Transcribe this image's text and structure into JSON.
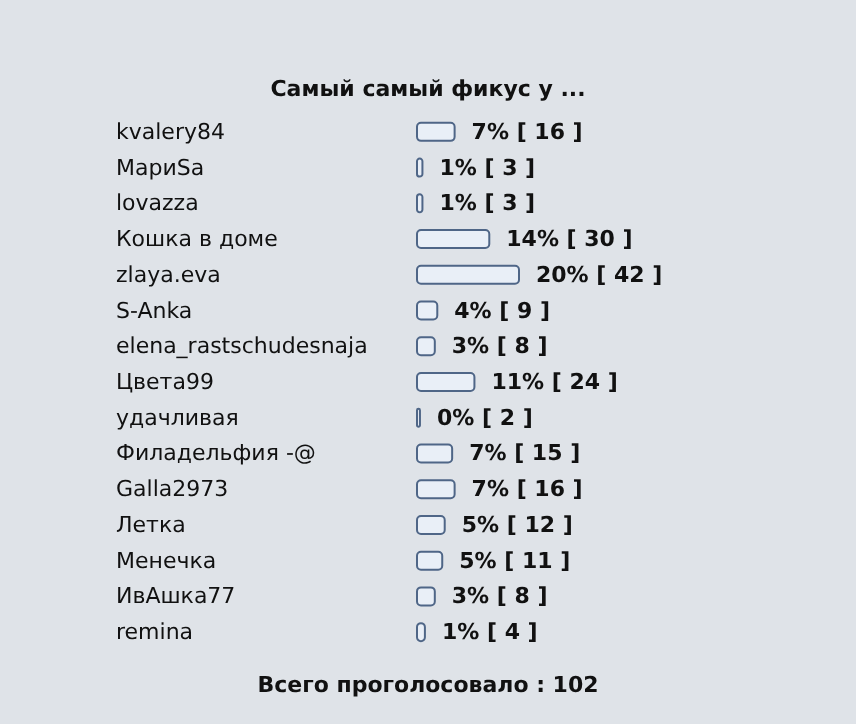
{
  "chart_data": {
    "type": "bar",
    "orientation": "horizontal",
    "title": "Самый самый фикус у ...",
    "categories": [
      "kvalery84",
      "МариSa",
      "lovazza",
      "Кошка в доме",
      "zlaya.eva",
      "S-Anka",
      "elena_rastschudesnaja",
      "Цвета99",
      "удачливая",
      "Филадельфия -@",
      "Galla2973",
      "Летка",
      "Менечка",
      "ИвАшка77",
      "remina"
    ],
    "values": [
      16,
      3,
      3,
      30,
      42,
      9,
      8,
      24,
      2,
      15,
      16,
      12,
      11,
      8,
      4
    ],
    "value_labels": [
      "7% [ 16 ]",
      "1% [ 3 ]",
      "1% [ 3 ]",
      "14% [ 30 ]",
      "20% [ 42 ]",
      "4% [ 9 ]",
      "3% [ 8 ]",
      "11% [ 24 ]",
      "0% [ 2 ]",
      "7% [ 15 ]",
      "7% [ 16 ]",
      "5% [ 12 ]",
      "5% [ 11 ]",
      "3% [ 8 ]",
      "1% [ 4 ]"
    ],
    "color": "#e9eff7",
    "annotations": [
      "Всего проголосовало : 102"
    ]
  }
}
